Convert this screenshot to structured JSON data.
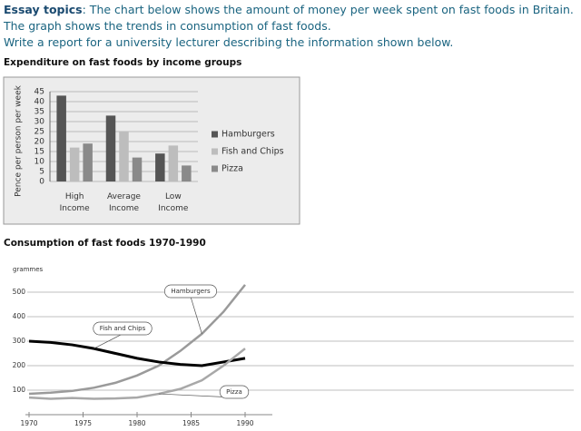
{
  "essay": {
    "label": "Essay topics",
    "text": ": The chart below shows the amount of money per week spent on fast foods in Britain. The graph shows the trends in consumption of fast foods.",
    "instruction": "Write a report for a university lecturer describing the information shown below."
  },
  "chart_data": [
    {
      "type": "bar",
      "title": "Expenditure on fast foods by income groups",
      "y_label": "Pence per person per week",
      "categories": [
        "High Income",
        "Average Income",
        "Low Income"
      ],
      "series": [
        {
          "name": "Hamburgers",
          "color": "#555555",
          "values": [
            43,
            33,
            14
          ]
        },
        {
          "name": "Fish and Chips",
          "color": "#bdbdbd",
          "values": [
            17,
            25,
            18
          ]
        },
        {
          "name": "Pizza",
          "color": "#8a8a8a",
          "values": [
            19,
            12,
            8
          ]
        }
      ],
      "ylim": [
        0,
        45
      ],
      "yticks": [
        0,
        5,
        10,
        15,
        20,
        25,
        30,
        35,
        40,
        45
      ],
      "grid": true,
      "legend": "right"
    },
    {
      "type": "line",
      "title": "Consumption of fast foods 1970-1990",
      "y_label": "grammes",
      "x": [
        1970,
        1972,
        1974,
        1976,
        1978,
        1980,
        1982,
        1984,
        1986,
        1988,
        1990
      ],
      "series": [
        {
          "name": "Hamburgers",
          "color": "#9a9a9a",
          "values": [
            85,
            90,
            97,
            110,
            130,
            160,
            200,
            260,
            330,
            420,
            530
          ]
        },
        {
          "name": "Fish and Chips",
          "color": "#000000",
          "values": [
            300,
            295,
            285,
            270,
            250,
            230,
            215,
            205,
            200,
            215,
            230
          ]
        },
        {
          "name": "Pizza",
          "color": "#a8a8a8",
          "values": [
            70,
            65,
            68,
            65,
            66,
            70,
            85,
            105,
            140,
            200,
            270
          ]
        }
      ],
      "xlim": [
        1970,
        1990
      ],
      "xticks": [
        1970,
        1975,
        1980,
        1985,
        1990
      ],
      "ylim": [
        0,
        550
      ],
      "yticks": [
        100,
        200,
        300,
        400,
        500
      ],
      "grid": true
    }
  ]
}
